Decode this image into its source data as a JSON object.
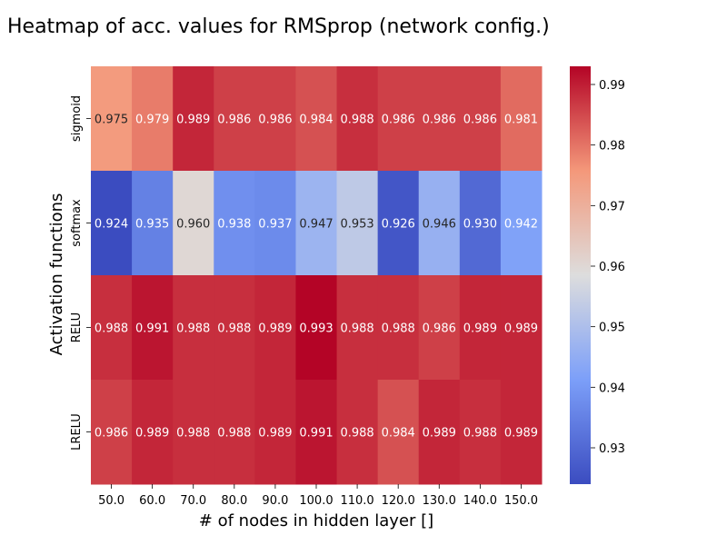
{
  "chart_data": {
    "type": "heatmap",
    "title": "Heatmap of acc. values for RMSprop (network config.)",
    "xlabel": "# of nodes in hidden layer []",
    "ylabel": "Activation functions",
    "x_categories": [
      "50.0",
      "60.0",
      "70.0",
      "80.0",
      "90.0",
      "100.0",
      "110.0",
      "120.0",
      "130.0",
      "140.0",
      "150.0"
    ],
    "y_categories": [
      "sigmoid",
      "softmax",
      "RELU",
      "LRELU"
    ],
    "values": [
      [
        0.975,
        0.979,
        0.989,
        0.986,
        0.986,
        0.984,
        0.988,
        0.986,
        0.986,
        0.986,
        0.981
      ],
      [
        0.924,
        0.935,
        0.96,
        0.938,
        0.937,
        0.947,
        0.953,
        0.926,
        0.946,
        0.93,
        0.942
      ],
      [
        0.988,
        0.991,
        0.988,
        0.988,
        0.989,
        0.993,
        0.988,
        0.988,
        0.986,
        0.989,
        0.989
      ],
      [
        0.986,
        0.989,
        0.988,
        0.988,
        0.989,
        0.991,
        0.988,
        0.984,
        0.989,
        0.988,
        0.989
      ]
    ],
    "value_labels": [
      [
        "0.975",
        "0.979",
        "0.989",
        "0.986",
        "0.986",
        "0.984",
        "0.988",
        "0.986",
        "0.986",
        "0.986",
        "0.981"
      ],
      [
        "0.924",
        "0.935",
        "0.960",
        "0.938",
        "0.937",
        "0.947",
        "0.953",
        "0.926",
        "0.946",
        "0.930",
        "0.942"
      ],
      [
        "0.988",
        "0.991",
        "0.988",
        "0.988",
        "0.989",
        "0.993",
        "0.988",
        "0.988",
        "0.986",
        "0.989",
        "0.989"
      ],
      [
        "0.986",
        "0.989",
        "0.988",
        "0.988",
        "0.989",
        "0.991",
        "0.988",
        "0.984",
        "0.989",
        "0.988",
        "0.989"
      ]
    ],
    "colormap": "coolwarm",
    "vmin": 0.924,
    "vmax": 0.993,
    "colorbar_ticks": [
      0.93,
      0.94,
      0.95,
      0.96,
      0.97,
      0.98,
      0.99
    ],
    "colorbar_tick_labels": [
      "0.93",
      "0.94",
      "0.95",
      "0.96",
      "0.97",
      "0.98",
      "0.99"
    ],
    "grid": false
  }
}
